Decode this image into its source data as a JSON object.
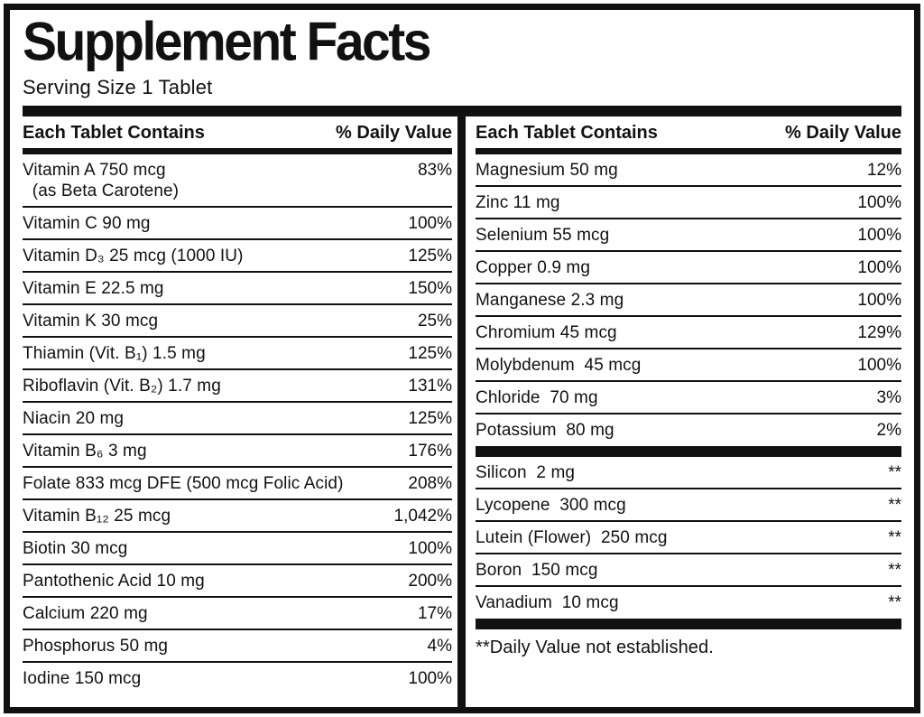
{
  "label": {
    "title": "Supplement Facts",
    "serving_size": "Serving Size 1 Tablet",
    "column_header": {
      "contains": "Each Tablet Contains",
      "daily_value": "% Daily Value"
    },
    "left_column": {
      "rows": [
        {
          "name": "Vitamin A 750 mcg\n  (as Beta Carotene)",
          "dv": "83%"
        },
        {
          "name": "Vitamin C 90 mg",
          "dv": "100%"
        },
        {
          "name": "Vitamin D₃ 25 mcg (1000 IU)",
          "dv": "125%"
        },
        {
          "name": "Vitamin E 22.5 mg",
          "dv": "150%"
        },
        {
          "name": "Vitamin K 30 mcg",
          "dv": "25%"
        },
        {
          "name": "Thiamin (Vit. B₁) 1.5 mg",
          "dv": "125%"
        },
        {
          "name": "Riboflavin (Vit. B₂) 1.7 mg",
          "dv": "131%"
        },
        {
          "name": "Niacin 20 mg",
          "dv": "125%"
        },
        {
          "name": "Vitamin B₆ 3 mg",
          "dv": "176%"
        },
        {
          "name": "Folate 833 mcg DFE (500 mcg Folic Acid)",
          "dv": "208%"
        },
        {
          "name": "Vitamin B₁₂ 25 mcg",
          "dv": "1,042%"
        },
        {
          "name": "Biotin 30 mcg",
          "dv": "100%"
        },
        {
          "name": "Pantothenic Acid 10 mg",
          "dv": "200%"
        },
        {
          "name": "Calcium 220 mg",
          "dv": "17%"
        },
        {
          "name": "Phosphorus 50 mg",
          "dv": "4%"
        },
        {
          "name": "Iodine 150 mcg",
          "dv": "100%"
        }
      ]
    },
    "right_column": {
      "rows_with_dv": [
        {
          "name": "Magnesium 50 mg",
          "dv": "12%"
        },
        {
          "name": "Zinc 11 mg",
          "dv": "100%"
        },
        {
          "name": "Selenium 55 mcg",
          "dv": "100%"
        },
        {
          "name": "Copper 0.9 mg",
          "dv": "100%"
        },
        {
          "name": "Manganese 2.3 mg",
          "dv": "100%"
        },
        {
          "name": "Chromium 45 mcg",
          "dv": "129%"
        },
        {
          "name": "Molybdenum  45 mcg",
          "dv": "100%"
        },
        {
          "name": "Chloride  70 mg",
          "dv": "3%"
        },
        {
          "name": "Potassium  80 mg",
          "dv": "2%"
        }
      ],
      "rows_no_dv": [
        {
          "name": "Silicon  2 mg",
          "dv": "**"
        },
        {
          "name": "Lycopene  300 mcg",
          "dv": "**"
        },
        {
          "name": "Lutein (Flower)  250 mcg",
          "dv": "**"
        },
        {
          "name": "Boron  150 mcg",
          "dv": "**"
        },
        {
          "name": "Vanadium  10 mcg",
          "dv": "**"
        }
      ],
      "footnote": "**Daily Value not established."
    },
    "colors": {
      "ink": "#111111",
      "background": "#ffffff"
    }
  }
}
